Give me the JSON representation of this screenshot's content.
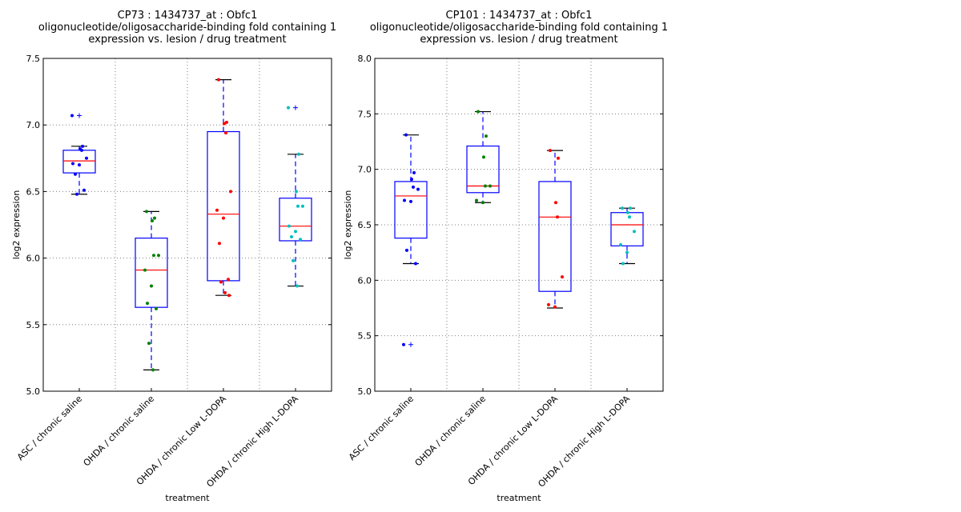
{
  "colors": {
    "box": "#0000ff",
    "median": "#ff0000",
    "whisker_cap": "#000000",
    "grid": "#808080",
    "groups": [
      "#0000ff",
      "#008000",
      "#ff0000",
      "#00bfbf"
    ]
  },
  "chart_data": [
    {
      "type": "box",
      "title_lines": [
        "CP73 : 1434737_at : Obfc1",
        "oligonucleotide/oligosaccharide-binding fold containing 1",
        "expression vs. lesion / drug treatment"
      ],
      "xlabel": "treatment",
      "ylabel": "log2 expression",
      "ylim": [
        5.0,
        7.5
      ],
      "yticks": [
        "5.0",
        "5.5",
        "6.0",
        "6.5",
        "7.0",
        "7.5"
      ],
      "grid": true,
      "categories": [
        "ASC / chronic saline",
        "OHDA / chronic saline",
        "OHDA / chronic Low L-DOPA",
        "OHDA / chronic High L-DOPA"
      ],
      "boxes": [
        {
          "q1": 6.64,
          "median": 6.73,
          "q3": 6.81,
          "whisker_low": 6.48,
          "whisker_high": 6.84,
          "outliers": [
            7.07
          ],
          "points": [
            7.07,
            6.84,
            6.82,
            6.81,
            6.75,
            6.71,
            6.7,
            6.63,
            6.51,
            6.48
          ]
        },
        {
          "q1": 5.63,
          "median": 5.91,
          "q3": 6.15,
          "whisker_low": 5.16,
          "whisker_high": 6.35,
          "outliers": [],
          "points": [
            6.35,
            6.3,
            6.28,
            6.02,
            6.02,
            5.91,
            5.79,
            5.66,
            5.62,
            5.36,
            5.16
          ]
        },
        {
          "q1": 5.83,
          "median": 6.33,
          "q3": 6.95,
          "whisker_low": 5.72,
          "whisker_high": 7.34,
          "outliers": [],
          "points": [
            7.34,
            7.02,
            7.01,
            6.94,
            6.5,
            6.36,
            6.3,
            6.11,
            5.84,
            5.82,
            5.74,
            5.72
          ]
        },
        {
          "q1": 6.13,
          "median": 6.24,
          "q3": 6.45,
          "whisker_low": 5.79,
          "whisker_high": 6.78,
          "outliers": [
            7.13
          ],
          "points": [
            7.13,
            6.78,
            6.5,
            6.39,
            6.39,
            6.24,
            6.2,
            6.16,
            6.14,
            5.98,
            5.79
          ]
        }
      ]
    },
    {
      "type": "box",
      "title_lines": [
        "CP101 : 1434737_at : Obfc1",
        "oligonucleotide/oligosaccharide-binding fold containing 1",
        "expression vs. lesion / drug treatment"
      ],
      "xlabel": "treatment",
      "ylabel": "log2 expression",
      "ylim": [
        5.0,
        8.0
      ],
      "yticks": [
        "5.0",
        "5.5",
        "6.0",
        "6.5",
        "7.0",
        "7.5",
        "8.0"
      ],
      "grid": true,
      "categories": [
        "ASC / chronic saline",
        "OHDA / chronic saline",
        "OHDA / chronic Low L-DOPA",
        "OHDA / chronic High L-DOPA"
      ],
      "boxes": [
        {
          "q1": 6.38,
          "median": 6.76,
          "q3": 6.89,
          "whisker_low": 6.15,
          "whisker_high": 7.31,
          "outliers": [
            5.42
          ],
          "points": [
            7.31,
            6.97,
            6.91,
            6.84,
            6.82,
            6.72,
            6.71,
            6.27,
            6.15,
            5.42
          ]
        },
        {
          "q1": 6.79,
          "median": 6.85,
          "q3": 7.21,
          "whisker_low": 6.7,
          "whisker_high": 7.52,
          "outliers": [],
          "points": [
            7.52,
            7.3,
            7.11,
            6.85,
            6.85,
            6.72,
            6.7
          ]
        },
        {
          "q1": 5.9,
          "median": 6.57,
          "q3": 6.89,
          "whisker_low": 5.75,
          "whisker_high": 7.17,
          "outliers": [],
          "points": [
            7.17,
            7.1,
            6.7,
            6.57,
            6.03,
            5.78,
            5.76
          ]
        },
        {
          "q1": 6.31,
          "median": 6.5,
          "q3": 6.61,
          "whisker_low": 6.15,
          "whisker_high": 6.65,
          "outliers": [],
          "points": [
            6.65,
            6.65,
            6.61,
            6.57,
            6.44,
            6.32,
            6.25,
            6.15
          ]
        }
      ]
    }
  ]
}
